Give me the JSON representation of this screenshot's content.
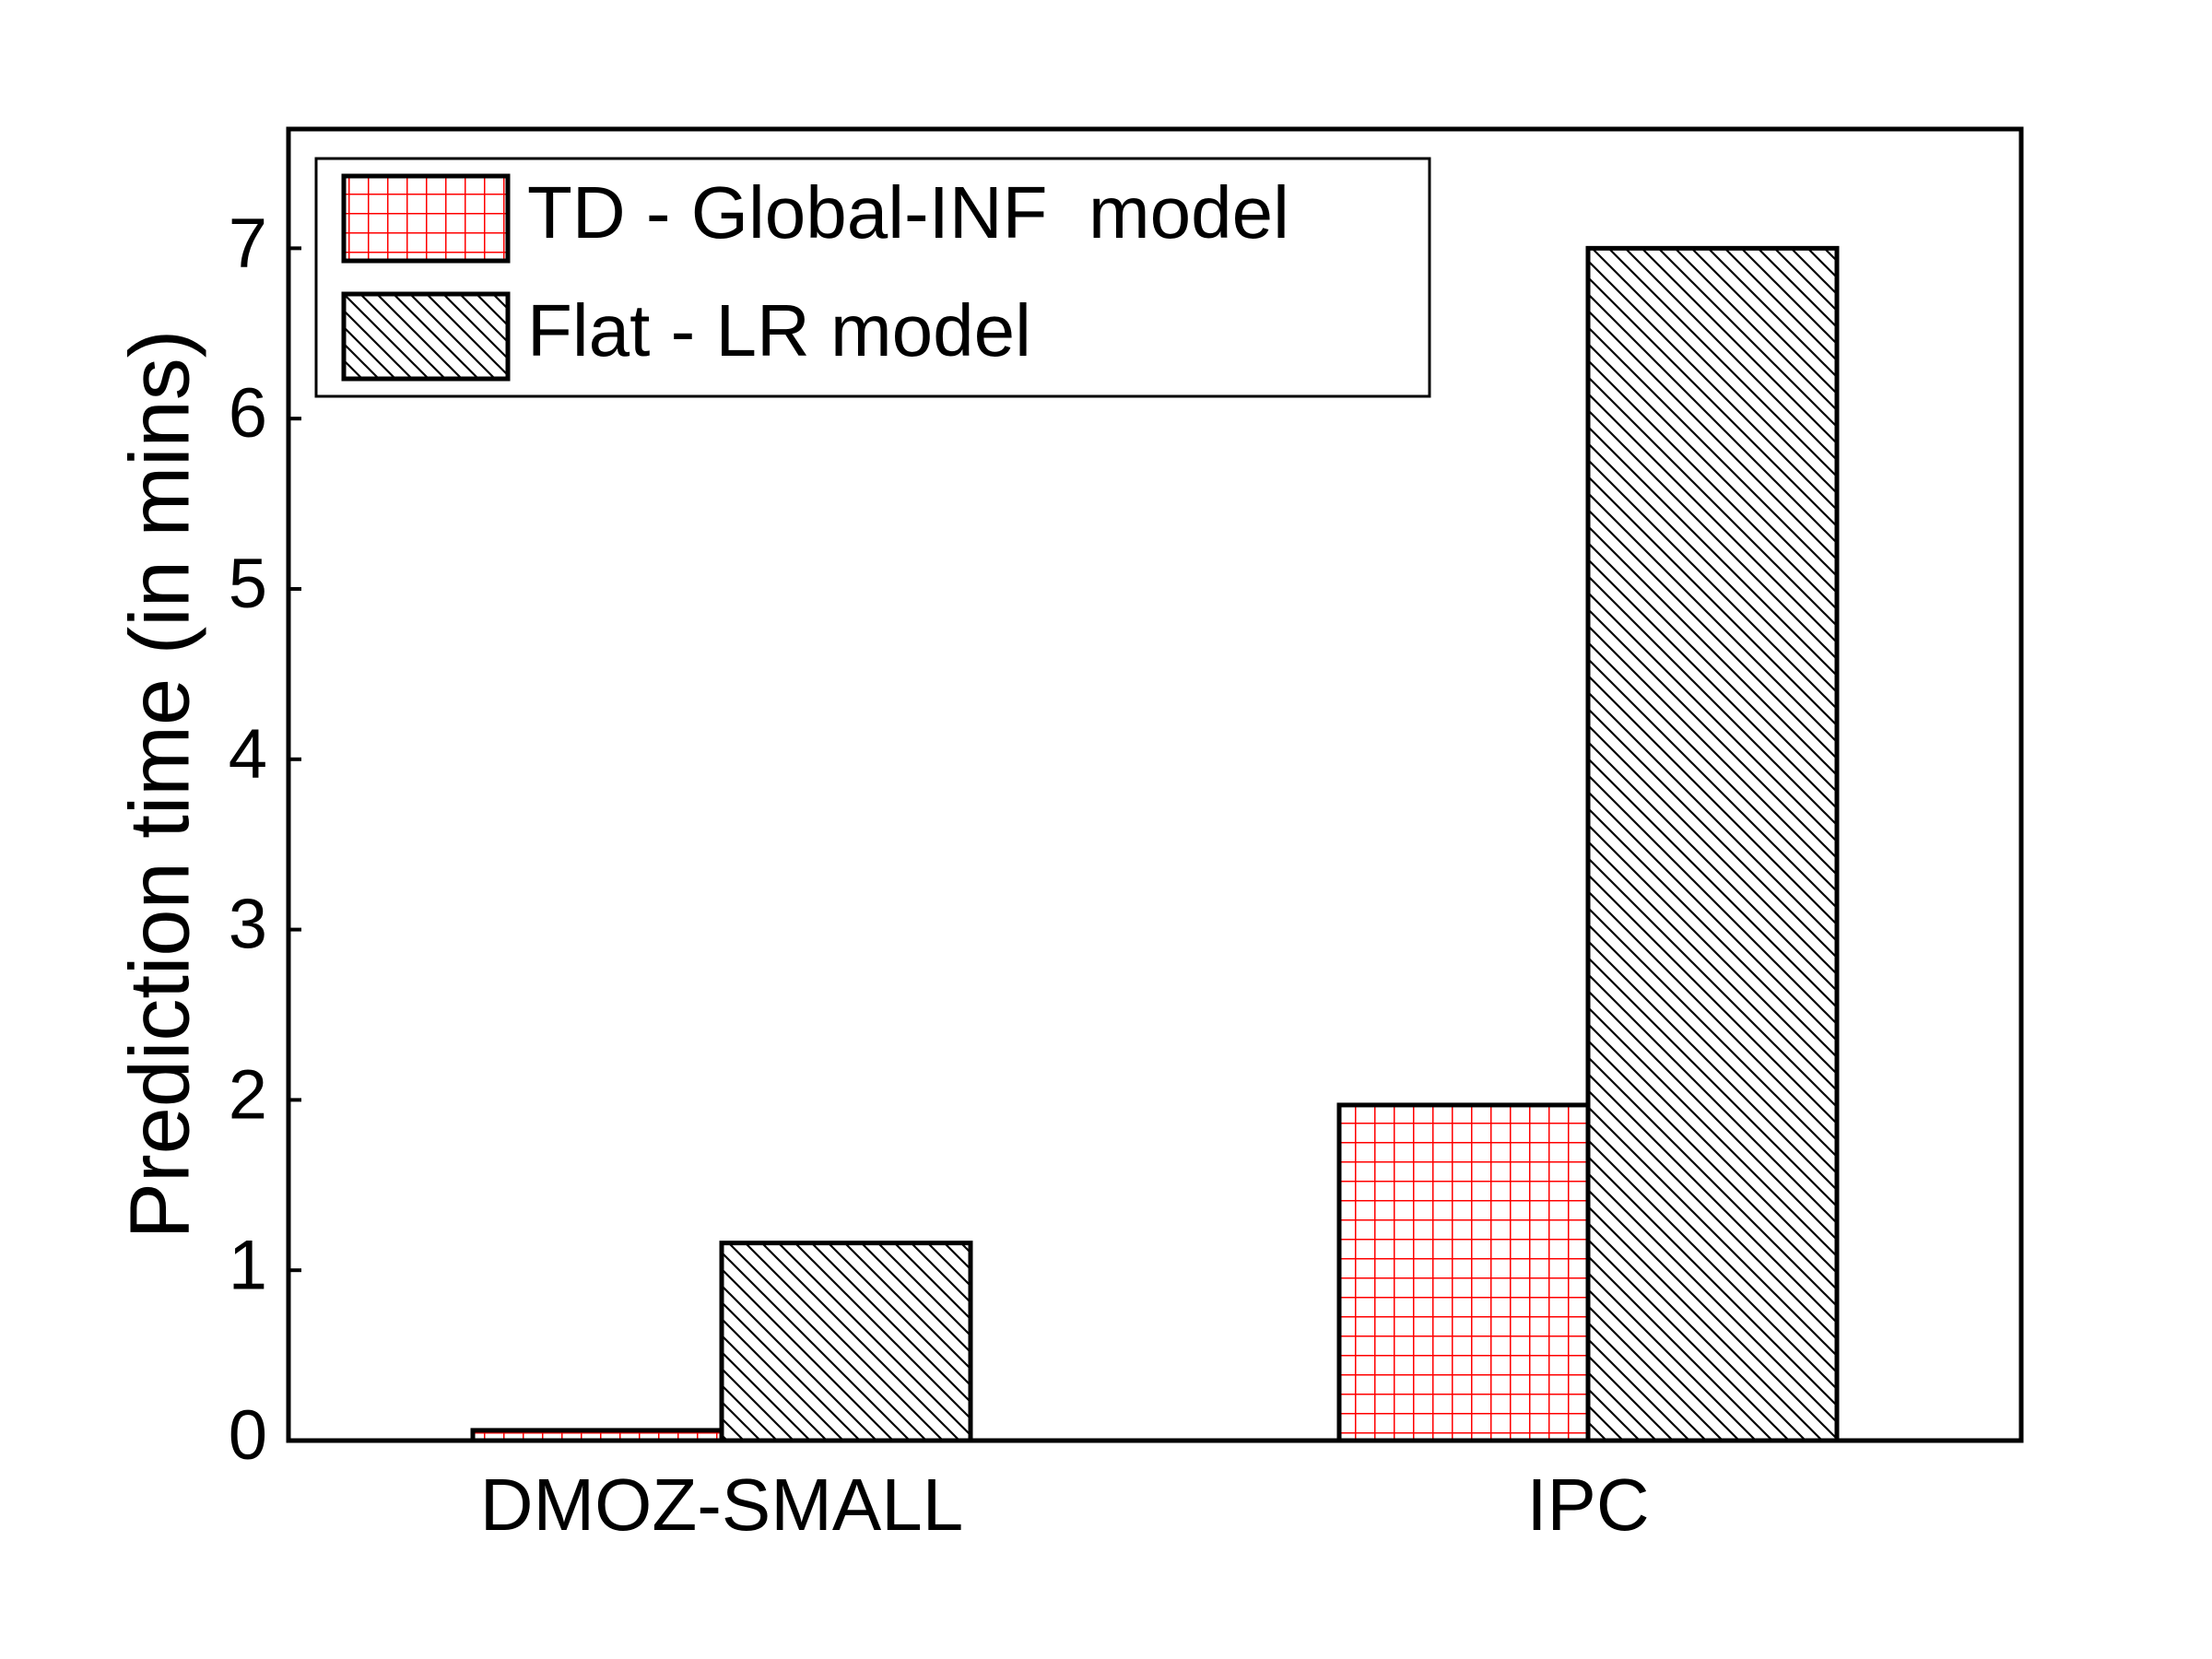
{
  "chart_data": {
    "type": "bar",
    "title": "",
    "xlabel": "",
    "ylabel": "Prediction time (in mins)",
    "categories": [
      "DMOZ-SMALL",
      "IPC"
    ],
    "series": [
      {
        "name": "TD - Global-INF  model",
        "values": [
          0.06,
          1.97
        ],
        "color": "#ff0000",
        "pattern": "grid"
      },
      {
        "name": "Flat - LR model",
        "values": [
          1.16,
          7.0
        ],
        "color": "#000000",
        "pattern": "diagonal"
      }
    ],
    "ylim": [
      0,
      7.7
    ],
    "yticks": [
      0,
      1,
      2,
      3,
      4,
      5,
      6,
      7
    ],
    "grid": false,
    "legend_position": "top-left"
  }
}
